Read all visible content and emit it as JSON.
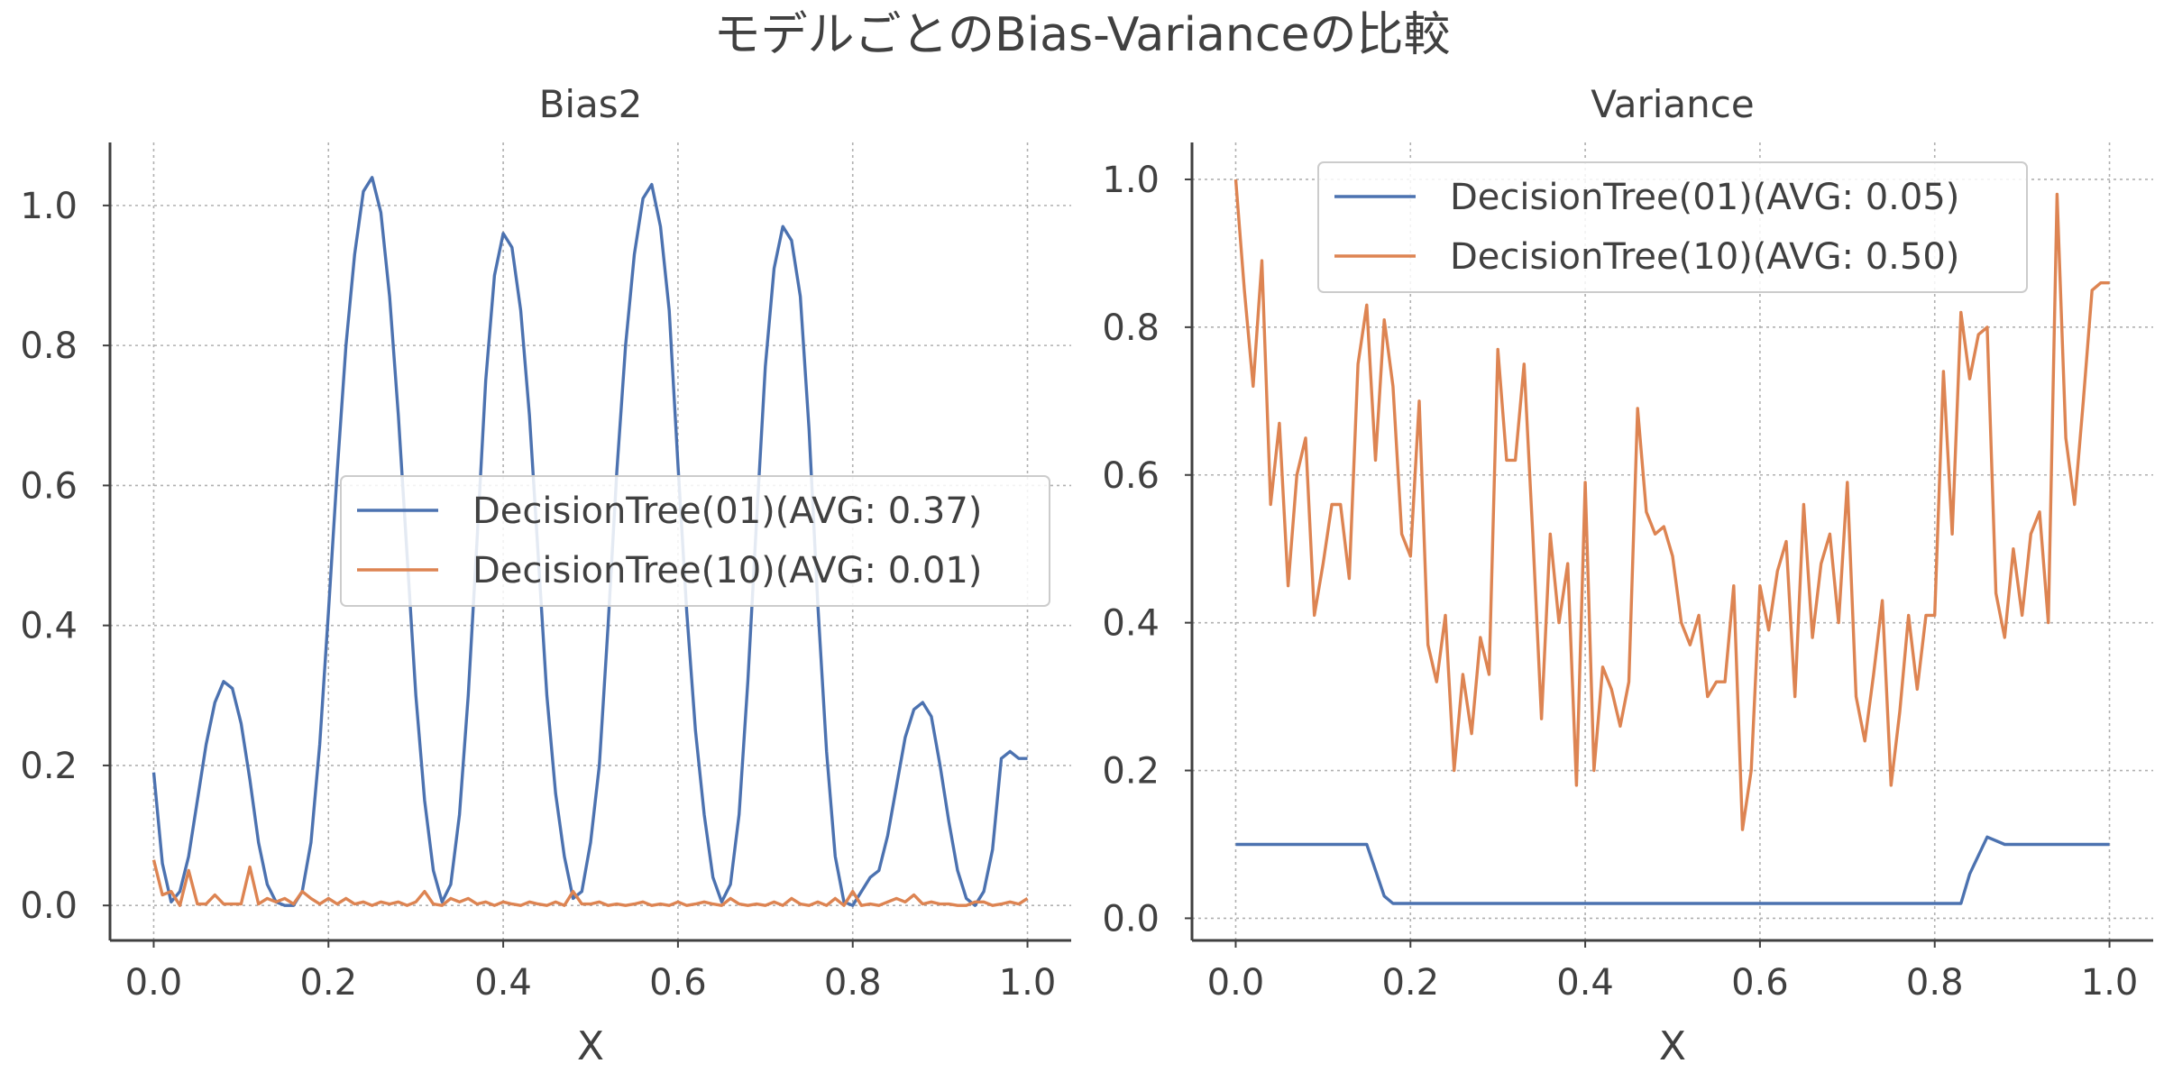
{
  "figure_title": "モデルごとのBias-Varianceの比較",
  "colors": {
    "series1": "#4c72b0",
    "series2": "#dd8452"
  },
  "chart_data": [
    {
      "type": "line",
      "title": "Bias2",
      "xlabel": "X",
      "ylabel": "",
      "xlim": [
        -0.05,
        1.05
      ],
      "ylim": [
        -0.05,
        1.09
      ],
      "xticks": [
        0.0,
        0.2,
        0.4,
        0.6,
        0.8,
        1.0
      ],
      "xtick_labels": [
        "0.0",
        "0.2",
        "0.4",
        "0.6",
        "0.8",
        "1.0"
      ],
      "yticks": [
        0.0,
        0.2,
        0.4,
        0.6,
        0.8,
        1.0
      ],
      "ytick_labels": [
        "0.0",
        "0.2",
        "0.4",
        "0.6",
        "0.8",
        "1.0"
      ],
      "grid": true,
      "legend_position": "center-right",
      "series": [
        {
          "name": "DecisionTree(01)(AVG: 0.37)",
          "color": "#4c72b0",
          "x": [
            0.0,
            0.01,
            0.02,
            0.03,
            0.04,
            0.05,
            0.06,
            0.07,
            0.08,
            0.09,
            0.1,
            0.11,
            0.12,
            0.13,
            0.14,
            0.15,
            0.16,
            0.17,
            0.18,
            0.19,
            0.2,
            0.21,
            0.22,
            0.23,
            0.24,
            0.25,
            0.26,
            0.27,
            0.28,
            0.29,
            0.3,
            0.31,
            0.32,
            0.33,
            0.34,
            0.35,
            0.36,
            0.37,
            0.38,
            0.39,
            0.4,
            0.41,
            0.42,
            0.43,
            0.44,
            0.45,
            0.46,
            0.47,
            0.48,
            0.49,
            0.5,
            0.51,
            0.52,
            0.53,
            0.54,
            0.55,
            0.56,
            0.57,
            0.58,
            0.59,
            0.6,
            0.61,
            0.62,
            0.63,
            0.64,
            0.65,
            0.66,
            0.67,
            0.68,
            0.69,
            0.7,
            0.71,
            0.72,
            0.73,
            0.74,
            0.75,
            0.76,
            0.77,
            0.78,
            0.79,
            0.8,
            0.81,
            0.82,
            0.83,
            0.84,
            0.85,
            0.86,
            0.87,
            0.88,
            0.89,
            0.9,
            0.91,
            0.92,
            0.93,
            0.94,
            0.95,
            0.96,
            0.97,
            0.98,
            0.99,
            1.0
          ],
          "y": [
            0.19,
            0.06,
            0.005,
            0.02,
            0.07,
            0.15,
            0.23,
            0.29,
            0.32,
            0.31,
            0.26,
            0.18,
            0.09,
            0.03,
            0.005,
            0.0,
            0.0,
            0.02,
            0.09,
            0.23,
            0.42,
            0.62,
            0.8,
            0.93,
            1.02,
            1.04,
            0.99,
            0.87,
            0.7,
            0.5,
            0.3,
            0.15,
            0.05,
            0.005,
            0.03,
            0.13,
            0.3,
            0.52,
            0.75,
            0.9,
            0.96,
            0.94,
            0.85,
            0.7,
            0.5,
            0.3,
            0.16,
            0.07,
            0.01,
            0.02,
            0.09,
            0.2,
            0.4,
            0.62,
            0.8,
            0.93,
            1.01,
            1.03,
            0.97,
            0.85,
            0.63,
            0.42,
            0.25,
            0.13,
            0.04,
            0.005,
            0.03,
            0.13,
            0.32,
            0.55,
            0.77,
            0.91,
            0.97,
            0.95,
            0.87,
            0.68,
            0.43,
            0.22,
            0.07,
            0.005,
            0.0,
            0.02,
            0.04,
            0.05,
            0.1,
            0.17,
            0.24,
            0.28,
            0.29,
            0.27,
            0.2,
            0.12,
            0.05,
            0.01,
            0.0,
            0.02,
            0.08,
            0.21,
            0.22,
            0.21,
            0.21
          ]
        },
        {
          "name": "DecisionTree(10)(AVG: 0.01)",
          "color": "#dd8452",
          "x": [
            0.0,
            0.01,
            0.02,
            0.03,
            0.04,
            0.05,
            0.06,
            0.07,
            0.08,
            0.09,
            0.1,
            0.11,
            0.12,
            0.13,
            0.14,
            0.15,
            0.16,
            0.17,
            0.18,
            0.19,
            0.2,
            0.21,
            0.22,
            0.23,
            0.24,
            0.25,
            0.26,
            0.27,
            0.28,
            0.29,
            0.3,
            0.31,
            0.32,
            0.33,
            0.34,
            0.35,
            0.36,
            0.37,
            0.38,
            0.39,
            0.4,
            0.41,
            0.42,
            0.43,
            0.44,
            0.45,
            0.46,
            0.47,
            0.48,
            0.49,
            0.5,
            0.51,
            0.52,
            0.53,
            0.54,
            0.55,
            0.56,
            0.57,
            0.58,
            0.59,
            0.6,
            0.61,
            0.62,
            0.63,
            0.64,
            0.65,
            0.66,
            0.67,
            0.68,
            0.69,
            0.7,
            0.71,
            0.72,
            0.73,
            0.74,
            0.75,
            0.76,
            0.77,
            0.78,
            0.79,
            0.8,
            0.81,
            0.82,
            0.83,
            0.84,
            0.85,
            0.86,
            0.87,
            0.88,
            0.89,
            0.9,
            0.91,
            0.92,
            0.93,
            0.94,
            0.95,
            0.96,
            0.97,
            0.98,
            0.99,
            1.0
          ],
          "y": [
            0.065,
            0.015,
            0.02,
            0.0,
            0.05,
            0.002,
            0.002,
            0.015,
            0.002,
            0.002,
            0.002,
            0.055,
            0.002,
            0.01,
            0.005,
            0.01,
            0.002,
            0.02,
            0.01,
            0.002,
            0.01,
            0.002,
            0.01,
            0.002,
            0.005,
            0.0,
            0.005,
            0.002,
            0.005,
            0.0,
            0.005,
            0.02,
            0.002,
            0.0,
            0.01,
            0.005,
            0.01,
            0.002,
            0.005,
            0.0,
            0.005,
            0.002,
            0.0,
            0.005,
            0.002,
            0.0,
            0.005,
            0.0,
            0.02,
            0.002,
            0.002,
            0.005,
            0.0,
            0.002,
            0.0,
            0.002,
            0.005,
            0.0,
            0.002,
            0.0,
            0.005,
            0.0,
            0.002,
            0.005,
            0.002,
            0.0,
            0.01,
            0.002,
            0.0,
            0.002,
            0.0,
            0.005,
            0.0,
            0.01,
            0.002,
            0.0,
            0.005,
            0.0,
            0.01,
            0.0,
            0.02,
            0.0,
            0.002,
            0.0,
            0.005,
            0.01,
            0.005,
            0.015,
            0.002,
            0.005,
            0.002,
            0.002,
            0.0,
            0.0,
            0.005,
            0.005,
            0.0,
            0.002,
            0.005,
            0.002,
            0.01
          ]
        }
      ]
    },
    {
      "type": "line",
      "title": "Variance",
      "xlabel": "X",
      "ylabel": "",
      "xlim": [
        -0.05,
        1.05
      ],
      "ylim": [
        -0.03,
        1.05
      ],
      "xticks": [
        0.0,
        0.2,
        0.4,
        0.6,
        0.8,
        1.0
      ],
      "xtick_labels": [
        "0.0",
        "0.2",
        "0.4",
        "0.6",
        "0.8",
        "1.0"
      ],
      "yticks": [
        0.0,
        0.2,
        0.4,
        0.6,
        0.8,
        1.0
      ],
      "ytick_labels": [
        "0.0",
        "0.2",
        "0.4",
        "0.6",
        "0.8",
        "1.0"
      ],
      "grid": true,
      "legend_position": "top-center",
      "series": [
        {
          "name": "DecisionTree(01)(AVG: 0.05)",
          "color": "#4c72b0",
          "x": [
            0.0,
            0.14,
            0.15,
            0.17,
            0.18,
            0.5,
            0.83,
            0.84,
            0.86,
            0.88,
            1.0
          ],
          "y": [
            0.1,
            0.1,
            0.1,
            0.03,
            0.02,
            0.02,
            0.02,
            0.06,
            0.11,
            0.1,
            0.1
          ]
        },
        {
          "name": "DecisionTree(10)(AVG: 0.50)",
          "color": "#dd8452",
          "x": [
            0.0,
            0.01,
            0.02,
            0.03,
            0.04,
            0.05,
            0.06,
            0.07,
            0.08,
            0.09,
            0.1,
            0.11,
            0.12,
            0.13,
            0.14,
            0.15,
            0.16,
            0.17,
            0.18,
            0.19,
            0.2,
            0.21,
            0.22,
            0.23,
            0.24,
            0.25,
            0.26,
            0.27,
            0.28,
            0.29,
            0.3,
            0.31,
            0.32,
            0.33,
            0.34,
            0.35,
            0.36,
            0.37,
            0.38,
            0.39,
            0.4,
            0.41,
            0.42,
            0.43,
            0.44,
            0.45,
            0.46,
            0.47,
            0.48,
            0.49,
            0.5,
            0.51,
            0.52,
            0.53,
            0.54,
            0.55,
            0.56,
            0.57,
            0.58,
            0.59,
            0.6,
            0.61,
            0.62,
            0.63,
            0.64,
            0.65,
            0.66,
            0.67,
            0.68,
            0.69,
            0.7,
            0.71,
            0.72,
            0.73,
            0.74,
            0.75,
            0.76,
            0.77,
            0.78,
            0.79,
            0.8,
            0.81,
            0.82,
            0.83,
            0.84,
            0.85,
            0.86,
            0.87,
            0.88,
            0.89,
            0.9,
            0.91,
            0.92,
            0.93,
            0.94,
            0.95,
            0.96,
            0.97,
            0.98,
            0.99,
            1.0
          ],
          "y": [
            1.0,
            0.85,
            0.72,
            0.89,
            0.56,
            0.67,
            0.45,
            0.6,
            0.65,
            0.41,
            0.48,
            0.56,
            0.56,
            0.46,
            0.75,
            0.83,
            0.62,
            0.81,
            0.72,
            0.52,
            0.49,
            0.7,
            0.37,
            0.32,
            0.41,
            0.2,
            0.33,
            0.25,
            0.38,
            0.33,
            0.77,
            0.62,
            0.62,
            0.75,
            0.52,
            0.27,
            0.52,
            0.4,
            0.48,
            0.18,
            0.59,
            0.2,
            0.34,
            0.31,
            0.26,
            0.32,
            0.69,
            0.55,
            0.52,
            0.53,
            0.49,
            0.4,
            0.37,
            0.41,
            0.3,
            0.32,
            0.32,
            0.45,
            0.12,
            0.2,
            0.45,
            0.39,
            0.47,
            0.51,
            0.3,
            0.56,
            0.38,
            0.48,
            0.52,
            0.4,
            0.59,
            0.3,
            0.24,
            0.33,
            0.43,
            0.18,
            0.28,
            0.41,
            0.31,
            0.41,
            0.41,
            0.74,
            0.52,
            0.82,
            0.73,
            0.79,
            0.8,
            0.44,
            0.38,
            0.5,
            0.41,
            0.52,
            0.55,
            0.4,
            0.98,
            0.65,
            0.56,
            0.7,
            0.85,
            0.86,
            0.86
          ]
        }
      ]
    }
  ]
}
